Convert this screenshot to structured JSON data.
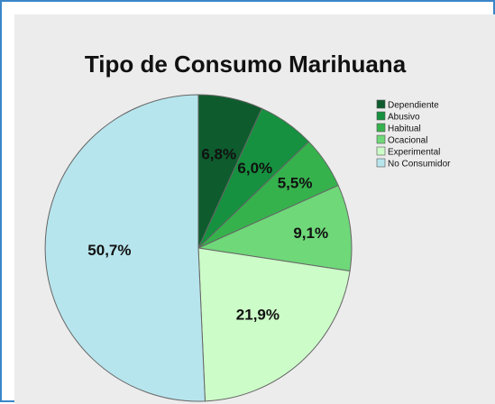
{
  "chart_data": {
    "type": "pie",
    "title": "Tipo de Consumo Marihuana",
    "legend_position": "right",
    "slices": [
      {
        "label": "Dependiente",
        "value": 6.8,
        "display": "6,8%",
        "color": "#0e5c2e"
      },
      {
        "label": "Abusivo",
        "value": 6.0,
        "display": "6,0%",
        "color": "#16913f"
      },
      {
        "label": "Habitual",
        "value": 5.5,
        "display": "5,5%",
        "color": "#36b24d"
      },
      {
        "label": "Ocacional",
        "value": 9.1,
        "display": "9,1%",
        "color": "#6fd879"
      },
      {
        "label": "Experimental",
        "value": 21.9,
        "display": "21,9%",
        "color": "#ccfcc8"
      },
      {
        "label": "No Consumidor",
        "value": 50.7,
        "display": "50,7%",
        "color": "#b7e5ed"
      }
    ]
  },
  "colors": {
    "frame_border": "#3a86c8",
    "plot_background": "#ececec",
    "slice_stroke": "#666666"
  }
}
